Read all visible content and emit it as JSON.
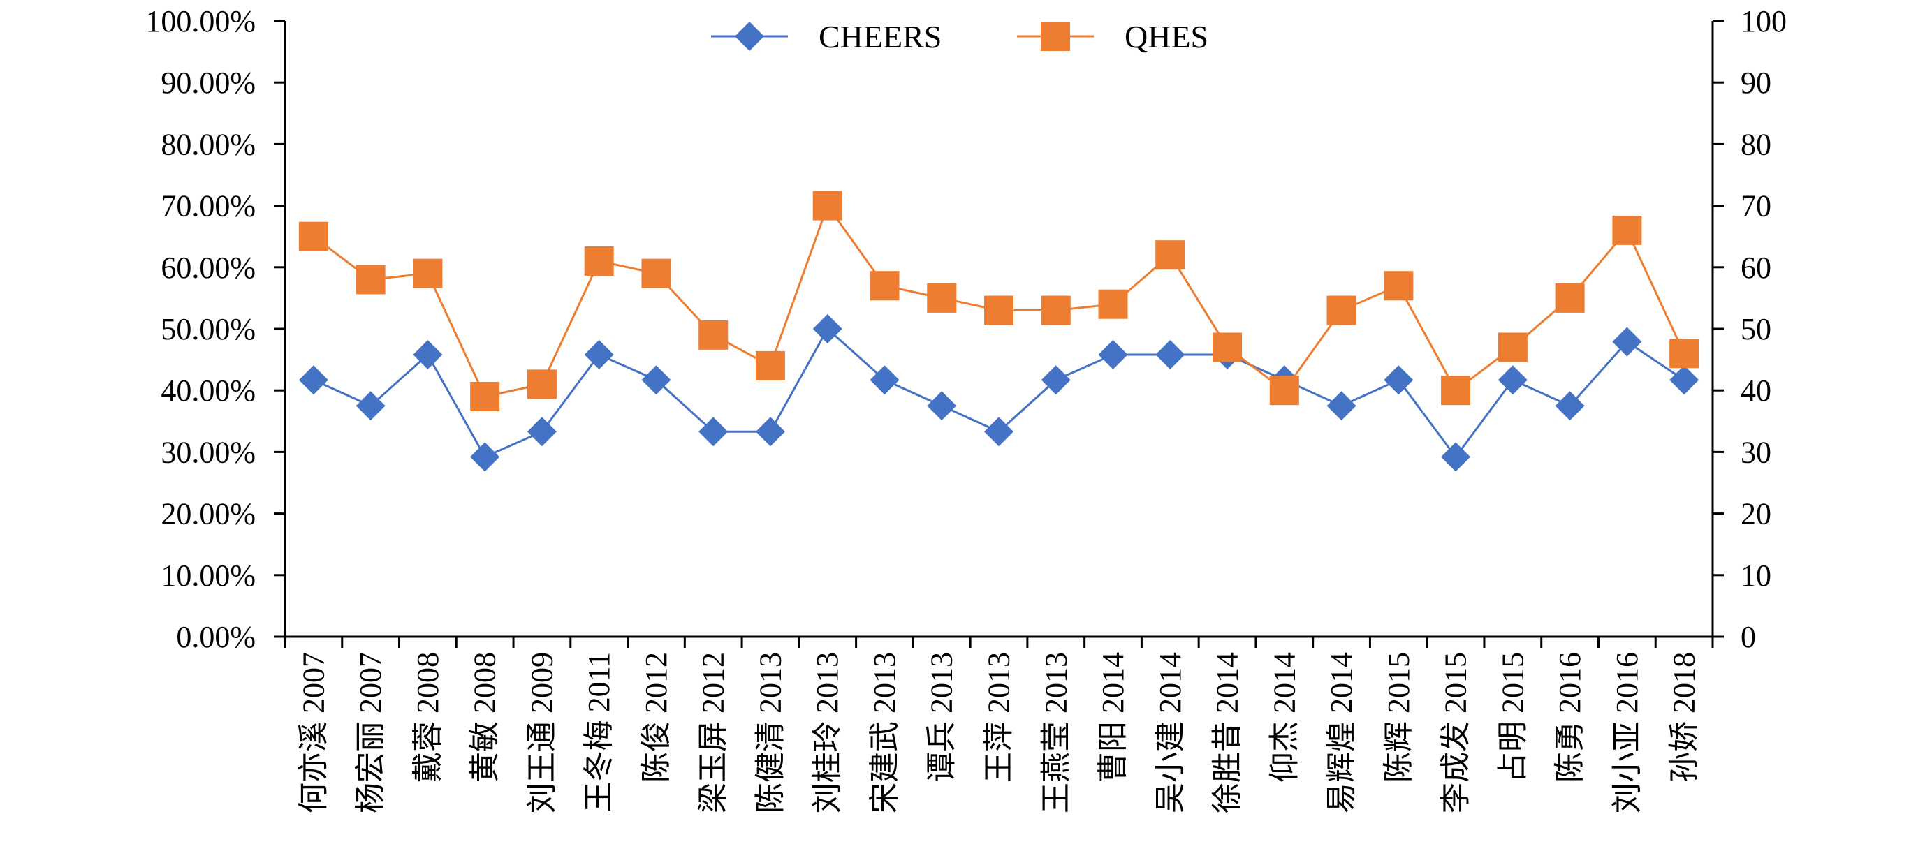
{
  "chart_data": {
    "type": "line",
    "categories": [
      "何亦溪 2007",
      "杨宏丽 2007",
      "戴蓉 2008",
      "黄敏 2008",
      "刘王通 2009",
      "王冬梅 2011",
      "陈俊 2012",
      "梁玉屏 2012",
      "陈健清 2013",
      "刘桂玲 2013",
      "宋建武 2013",
      "谭兵 2013",
      "王萍 2013",
      "王燕莹 2013",
      "曹阳 2014",
      "吴小建 2014",
      "徐胜昔 2014",
      "仰杰 2014",
      "易辉煌 2014",
      "陈辉 2015",
      "李成发 2015",
      "占明 2015",
      "陈勇 2016",
      "刘小亚 2016",
      "孙娇 2018"
    ],
    "series": [
      {
        "name": "CHEERS",
        "axis": "left",
        "unit": "percent",
        "values": [
          41.7,
          37.5,
          45.8,
          29.2,
          33.3,
          45.8,
          41.7,
          33.3,
          33.3,
          50.0,
          41.7,
          37.5,
          33.3,
          41.7,
          45.8,
          45.8,
          45.8,
          41.7,
          37.5,
          41.7,
          29.2,
          41.7,
          37.5,
          47.9,
          41.7
        ],
        "color": "#4472C4",
        "marker": "diamond"
      },
      {
        "name": "QHES",
        "axis": "right",
        "values": [
          65,
          58,
          59,
          39,
          41,
          61,
          59,
          49,
          44,
          70,
          57,
          55,
          53,
          53,
          54,
          62,
          47,
          40,
          53,
          57,
          40,
          47,
          55,
          66,
          46
        ],
        "color": "#ED7D31",
        "marker": "square"
      }
    ],
    "y_left": {
      "range": [
        0,
        100
      ],
      "ticks": [
        "0.00%",
        "10.00%",
        "20.00%",
        "30.00%",
        "40.00%",
        "50.00%",
        "60.00%",
        "70.00%",
        "80.00%",
        "90.00%",
        "100.00%"
      ]
    },
    "y_right": {
      "range": [
        0,
        100
      ],
      "ticks": [
        "0",
        "10",
        "20",
        "30",
        "40",
        "50",
        "60",
        "70",
        "80",
        "90",
        "100"
      ]
    },
    "grid": false,
    "legend_position": "top-center",
    "category_label_orientation": "vertical"
  }
}
